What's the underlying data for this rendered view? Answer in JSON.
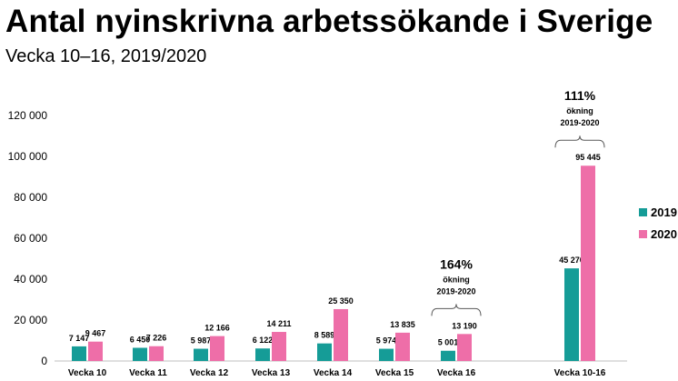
{
  "title": "Antal nyinskrivna arbetssökande i Sverige",
  "subtitle": "Vecka 10–16, 2019/2020",
  "colors": {
    "2019": "#159C97",
    "2020": "#EE6EA8"
  },
  "chart_data": {
    "type": "bar",
    "categories": [
      "Vecka 10",
      "Vecka 11",
      "Vecka 12",
      "Vecka 13",
      "Vecka 14",
      "Vecka 15",
      "Vecka 16",
      "Vecka 10-16"
    ],
    "series": [
      {
        "name": "2019",
        "values": [
          7147,
          6450,
          5987,
          6122,
          8589,
          5974,
          5001,
          45270
        ],
        "labels": [
          "7 147",
          "6 450",
          "5 987",
          "6 122",
          "8 589",
          "5 974",
          "5 001",
          "45 270"
        ]
      },
      {
        "name": "2020",
        "values": [
          9467,
          7226,
          12166,
          14211,
          25350,
          13835,
          13190,
          95445
        ],
        "labels": [
          "9 467",
          "7 226",
          "12 166",
          "14 211",
          "25 350",
          "13 835",
          "13 190",
          "95 445"
        ]
      }
    ],
    "yticks": [
      "0",
      "20 000",
      "40 000",
      "60 000",
      "80 000",
      "100 000",
      "120 000"
    ],
    "ylim": [
      0,
      120000
    ],
    "legend": [
      "2019",
      "2020"
    ],
    "legend_position": "right",
    "grid": false,
    "annotations": [
      {
        "pct": "164%",
        "line1": "ökning",
        "line2": "2019-2020",
        "category": "Vecka 16"
      },
      {
        "pct": "111%",
        "line1": "ökning",
        "line2": "2019-2020",
        "category": "Vecka 10-16"
      }
    ]
  }
}
